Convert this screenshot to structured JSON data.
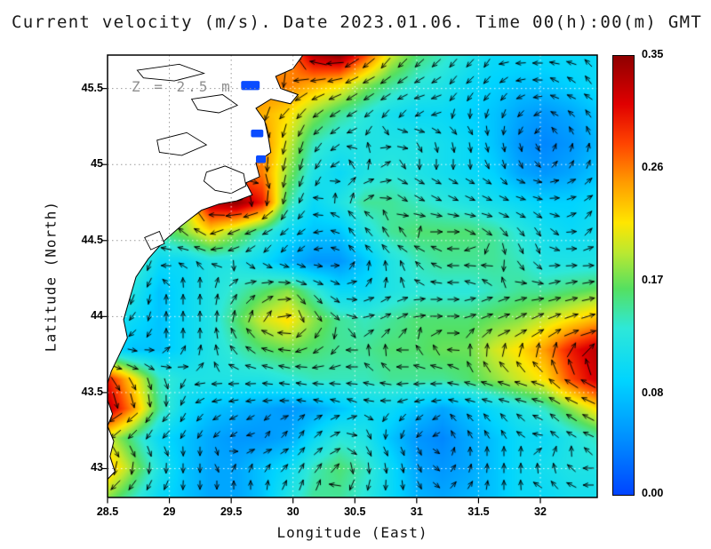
{
  "title": "Current velocity (m/s). Date 2023.01.06. Time 00(h):00(m) GMT",
  "annotation": "Z = 2.5 m",
  "axes": {
    "x_label": "Longitude (East)",
    "y_label": "Latitude (North)",
    "x_range": [
      28.5,
      32.46
    ],
    "y_range": [
      42.81,
      45.72
    ],
    "x_ticks": [
      28.5,
      29,
      29.5,
      30,
      30.5,
      31,
      31.5,
      32
    ],
    "x_tick_labels": [
      "28.5",
      "29",
      "29.5",
      "30",
      "30.5",
      "31",
      "31.5",
      "32"
    ],
    "y_ticks": [
      43,
      43.5,
      44,
      44.5,
      45,
      45.5
    ],
    "y_tick_labels": [
      "43",
      "43.5",
      "44",
      "44.5",
      "45",
      "45.5"
    ]
  },
  "colorbar": {
    "min": 0,
    "max": 0.35,
    "tick_values": [
      0,
      0.08,
      0.17,
      0.26,
      0.35
    ],
    "tick_labels": [
      "0.00",
      "0.08",
      "0.17",
      "0.26",
      "0.35"
    ],
    "stops": [
      {
        "t": 0.0,
        "c": "#0044ff"
      },
      {
        "t": 0.13,
        "c": "#0090ff"
      },
      {
        "t": 0.26,
        "c": "#00d4ff"
      },
      {
        "t": 0.38,
        "c": "#2ee8d8"
      },
      {
        "t": 0.47,
        "c": "#55e060"
      },
      {
        "t": 0.55,
        "c": "#b8e832"
      },
      {
        "t": 0.62,
        "c": "#ffe600"
      },
      {
        "t": 0.71,
        "c": "#ff9d00"
      },
      {
        "t": 0.8,
        "c": "#ff4400"
      },
      {
        "t": 0.89,
        "c": "#e00000"
      },
      {
        "t": 1.0,
        "c": "#8f0000"
      }
    ]
  },
  "chart_data": {
    "type": "heatmap",
    "overlay_type": "quiver-arrows",
    "title": "Current velocity (m/s). Date 2023.01.06. Time 00(h):00(m) GMT",
    "depth_annotation": "Z = 2.5 m",
    "units": "m/s",
    "xlabel": "Longitude (East)",
    "ylabel": "Latitude (North)",
    "xlim": [
      28.5,
      32.46
    ],
    "ylim": [
      42.81,
      45.72
    ],
    "zlim": [
      0,
      0.35
    ],
    "lon": [
      28.5,
      28.71,
      28.92,
      29.13,
      29.34,
      29.55,
      29.75,
      29.96,
      30.17,
      30.38,
      30.59,
      30.8,
      31.01,
      31.22,
      31.43,
      31.63,
      31.84,
      32.05,
      32.26,
      32.47
    ],
    "lat_top_to_bottom": [
      45.72,
      45.53,
      45.33,
      45.14,
      44.94,
      44.75,
      44.55,
      44.36,
      44.16,
      43.97,
      43.77,
      43.58,
      43.38,
      43.19,
      42.99,
      42.81
    ],
    "speed": [
      [
        0.25,
        0.25,
        0.25,
        0.25,
        0.25,
        0.25,
        0.25,
        0.25,
        0.33,
        0.35,
        0.28,
        0.2,
        0.16,
        0.14,
        0.12,
        0.1,
        0.1,
        0.1,
        0.1,
        0.1
      ],
      [
        0.26,
        0.26,
        0.26,
        0.26,
        0.26,
        0.26,
        0.26,
        0.26,
        0.24,
        0.22,
        0.18,
        0.15,
        0.13,
        0.12,
        0.1,
        0.09,
        0.08,
        0.08,
        0.09,
        0.1
      ],
      [
        0.24,
        0.24,
        0.24,
        0.24,
        0.24,
        0.24,
        0.24,
        0.22,
        0.18,
        0.15,
        0.13,
        0.11,
        0.1,
        0.1,
        0.09,
        0.08,
        0.06,
        0.05,
        0.06,
        0.08
      ],
      [
        0.28,
        0.28,
        0.28,
        0.28,
        0.28,
        0.28,
        0.26,
        0.2,
        0.14,
        0.12,
        0.12,
        0.12,
        0.12,
        0.11,
        0.1,
        0.08,
        0.05,
        0.04,
        0.05,
        0.07
      ],
      [
        0.26,
        0.26,
        0.26,
        0.26,
        0.26,
        0.26,
        0.26,
        0.18,
        0.12,
        0.1,
        0.12,
        0.13,
        0.12,
        0.11,
        0.1,
        0.09,
        0.06,
        0.05,
        0.06,
        0.08
      ],
      [
        0.2,
        0.2,
        0.2,
        0.2,
        0.33,
        0.35,
        0.3,
        0.15,
        0.1,
        0.12,
        0.15,
        0.15,
        0.14,
        0.13,
        0.12,
        0.11,
        0.1,
        0.09,
        0.09,
        0.1
      ],
      [
        0.12,
        0.12,
        0.15,
        0.18,
        0.22,
        0.18,
        0.14,
        0.1,
        0.08,
        0.08,
        0.12,
        0.15,
        0.16,
        0.16,
        0.16,
        0.15,
        0.13,
        0.11,
        0.1,
        0.11
      ],
      [
        0.28,
        0.15,
        0.1,
        0.1,
        0.12,
        0.12,
        0.1,
        0.07,
        0.05,
        0.05,
        0.08,
        0.12,
        0.14,
        0.15,
        0.15,
        0.15,
        0.14,
        0.12,
        0.12,
        0.12
      ],
      [
        0.2,
        0.12,
        0.08,
        0.1,
        0.12,
        0.14,
        0.16,
        0.18,
        0.14,
        0.1,
        0.1,
        0.12,
        0.13,
        0.13,
        0.13,
        0.14,
        0.15,
        0.15,
        0.16,
        0.17
      ],
      [
        0.12,
        0.1,
        0.08,
        0.1,
        0.12,
        0.16,
        0.2,
        0.22,
        0.18,
        0.15,
        0.14,
        0.15,
        0.16,
        0.16,
        0.16,
        0.17,
        0.18,
        0.2,
        0.22,
        0.24
      ],
      [
        0.1,
        0.08,
        0.08,
        0.1,
        0.12,
        0.14,
        0.16,
        0.17,
        0.16,
        0.15,
        0.15,
        0.16,
        0.16,
        0.17,
        0.17,
        0.2,
        0.22,
        0.25,
        0.3,
        0.33
      ],
      [
        0.3,
        0.22,
        0.14,
        0.12,
        0.12,
        0.12,
        0.12,
        0.13,
        0.14,
        0.14,
        0.14,
        0.15,
        0.15,
        0.15,
        0.16,
        0.18,
        0.2,
        0.22,
        0.28,
        0.32
      ],
      [
        0.33,
        0.25,
        0.15,
        0.1,
        0.08,
        0.07,
        0.06,
        0.05,
        0.06,
        0.08,
        0.1,
        0.1,
        0.08,
        0.06,
        0.08,
        0.1,
        0.12,
        0.14,
        0.18,
        0.22
      ],
      [
        0.2,
        0.15,
        0.1,
        0.08,
        0.06,
        0.05,
        0.05,
        0.06,
        0.1,
        0.13,
        0.12,
        0.08,
        0.05,
        0.04,
        0.06,
        0.08,
        0.1,
        0.1,
        0.12,
        0.14
      ],
      [
        0.24,
        0.18,
        0.12,
        0.08,
        0.06,
        0.06,
        0.08,
        0.1,
        0.14,
        0.16,
        0.14,
        0.1,
        0.06,
        0.05,
        0.06,
        0.08,
        0.1,
        0.11,
        0.12,
        0.12
      ],
      [
        0.18,
        0.14,
        0.1,
        0.08,
        0.06,
        0.06,
        0.08,
        0.12,
        0.15,
        0.15,
        0.13,
        0.1,
        0.07,
        0.06,
        0.07,
        0.08,
        0.1,
        0.1,
        0.11,
        0.11
      ]
    ],
    "land_color": "#ffffff",
    "coast_color": "#000000",
    "liman_water_color": "#0a4cff",
    "land_polygons": [
      [
        [
          28.5,
          45.72
        ],
        [
          29.1,
          45.72
        ],
        [
          29.6,
          45.72
        ],
        [
          30.08,
          45.72
        ],
        [
          30.0,
          45.63
        ],
        [
          29.86,
          45.58
        ],
        [
          29.9,
          45.5
        ],
        [
          30.04,
          45.46
        ],
        [
          29.98,
          45.4
        ],
        [
          29.82,
          45.43
        ],
        [
          29.7,
          45.37
        ],
        [
          29.77,
          45.29
        ],
        [
          29.8,
          45.18
        ],
        [
          29.82,
          45.08
        ],
        [
          29.7,
          45.01
        ],
        [
          29.73,
          44.92
        ],
        [
          29.62,
          44.88
        ],
        [
          29.67,
          44.8
        ],
        [
          29.54,
          44.76
        ],
        [
          29.4,
          44.74
        ],
        [
          29.26,
          44.7
        ],
        [
          29.1,
          44.6
        ],
        [
          28.96,
          44.5
        ],
        [
          28.83,
          44.38
        ],
        [
          28.73,
          44.26
        ],
        [
          28.68,
          44.12
        ],
        [
          28.63,
          43.98
        ],
        [
          28.66,
          43.86
        ],
        [
          28.59,
          43.74
        ],
        [
          28.53,
          43.64
        ],
        [
          28.5,
          43.56
        ]
      ],
      [
        [
          28.5,
          43.45
        ],
        [
          28.54,
          43.36
        ],
        [
          28.5,
          43.28
        ],
        [
          28.55,
          43.18
        ],
        [
          28.52,
          43.08
        ],
        [
          28.56,
          42.98
        ],
        [
          28.5,
          42.93
        ]
      ]
    ],
    "lake_outlines": [
      [
        [
          29.3,
          44.95
        ],
        [
          29.45,
          44.99
        ],
        [
          29.6,
          44.94
        ],
        [
          29.62,
          44.86
        ],
        [
          29.5,
          44.81
        ],
        [
          29.37,
          44.83
        ],
        [
          29.28,
          44.89
        ]
      ],
      [
        [
          28.8,
          44.52
        ],
        [
          28.92,
          44.56
        ],
        [
          28.96,
          44.48
        ],
        [
          28.85,
          44.44
        ]
      ],
      [
        [
          29.18,
          45.43
        ],
        [
          29.43,
          45.46
        ],
        [
          29.55,
          45.39
        ],
        [
          29.4,
          45.34
        ],
        [
          29.23,
          45.36
        ]
      ],
      [
        [
          28.74,
          45.62
        ],
        [
          29.08,
          45.66
        ],
        [
          29.28,
          45.6
        ],
        [
          29.04,
          45.55
        ],
        [
          28.79,
          45.57
        ]
      ],
      [
        [
          28.9,
          45.16
        ],
        [
          29.14,
          45.21
        ],
        [
          29.3,
          45.13
        ],
        [
          29.1,
          45.06
        ],
        [
          28.92,
          45.08
        ]
      ]
    ],
    "coastal_water_patches": [
      [
        29.58,
        45.55,
        0.15,
        0.06
      ],
      [
        29.66,
        45.23,
        0.1,
        0.05
      ],
      [
        29.7,
        45.06,
        0.08,
        0.05
      ]
    ]
  }
}
